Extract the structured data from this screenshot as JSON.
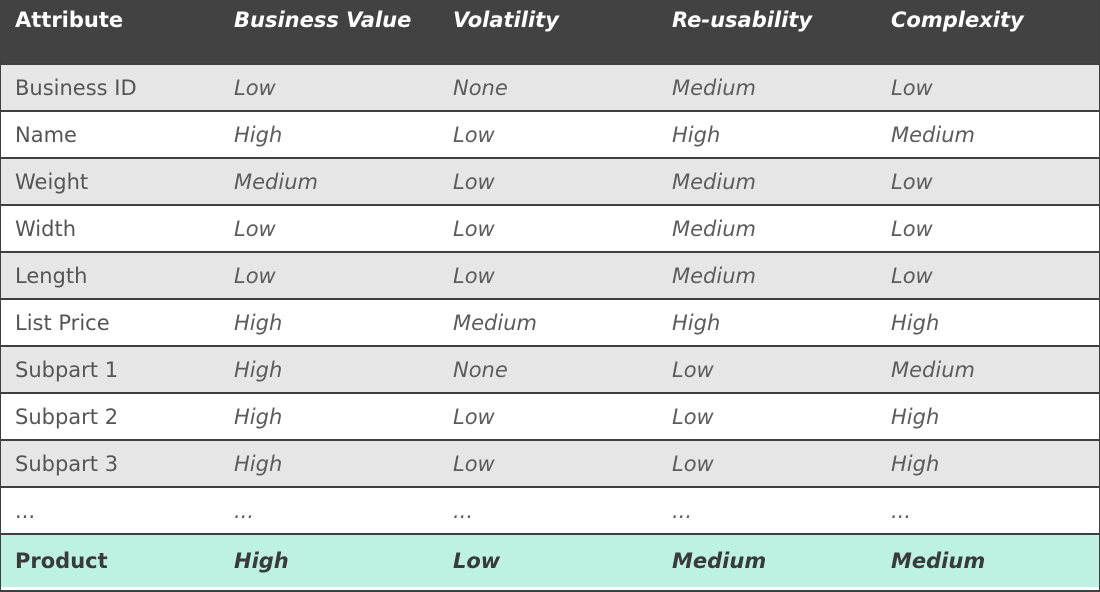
{
  "table": {
    "headers": [
      "Attribute",
      "Business Value",
      "Volatility",
      "Re-usability",
      "Complexity"
    ],
    "rows": [
      [
        "Business ID",
        "Low",
        "None",
        "Medium",
        "Low"
      ],
      [
        "Name",
        "High",
        "Low",
        "High",
        "Medium"
      ],
      [
        "Weight",
        "Medium",
        "Low",
        "Medium",
        "Low"
      ],
      [
        "Width",
        "Low",
        "Low",
        "Medium",
        "Low"
      ],
      [
        "Length",
        "Low",
        "Low",
        "Medium",
        "Low"
      ],
      [
        "List Price",
        "High",
        "Medium",
        "High",
        "High"
      ],
      [
        "Subpart 1",
        "High",
        "None",
        "Low",
        "Medium"
      ],
      [
        "Subpart 2",
        "High",
        "Low",
        "Low",
        "High"
      ],
      [
        "Subpart 3",
        "High",
        "Low",
        "Low",
        "High"
      ],
      [
        "...",
        "...",
        "...",
        "...",
        "..."
      ]
    ],
    "footer": [
      "Product",
      "High",
      "Low",
      "Medium",
      "Medium"
    ]
  },
  "colors": {
    "header_bg": "#424242",
    "odd_row_bg": "#e6e6e6",
    "even_row_bg": "#ffffff",
    "footer_bg": "#bdf2e2"
  }
}
